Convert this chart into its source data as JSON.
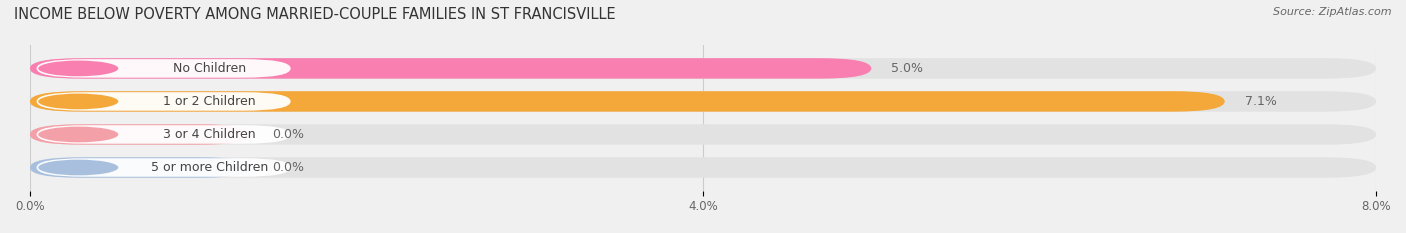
{
  "title": "INCOME BELOW POVERTY AMONG MARRIED-COUPLE FAMILIES IN ST FRANCISVILLE",
  "source": "Source: ZipAtlas.com",
  "categories": [
    "No Children",
    "1 or 2 Children",
    "3 or 4 Children",
    "5 or more Children"
  ],
  "values": [
    5.0,
    7.1,
    0.0,
    0.0
  ],
  "bar_colors": [
    "#f97fb0",
    "#f5a83a",
    "#f4a0a8",
    "#a8c0de"
  ],
  "xlim": [
    0,
    8.0
  ],
  "xticks": [
    0.0,
    4.0,
    8.0
  ],
  "xticklabels": [
    "0.0%",
    "4.0%",
    "8.0%"
  ],
  "bar_height": 0.62,
  "background_color": "#f0f0f0",
  "track_color": "#e2e2e2",
  "title_fontsize": 10.5,
  "bar_label_fontsize": 9,
  "category_fontsize": 9,
  "value_label_color": "#666666",
  "label_box_color": "#ffffff",
  "label_text_color": "#444444"
}
